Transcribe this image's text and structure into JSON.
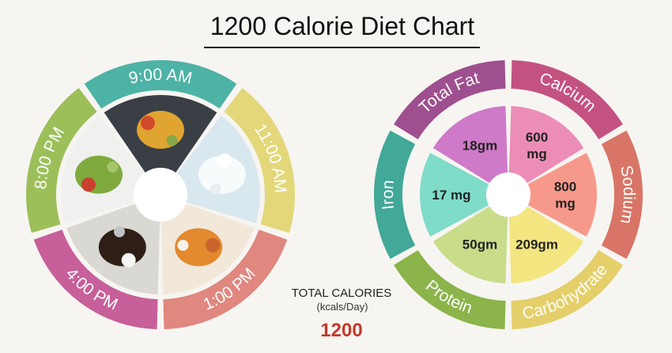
{
  "title": "1200 Calorie Diet Chart",
  "meal_ring": [
    {
      "label": "9:00 AM",
      "color": "#4db3a6",
      "food": "rice-bowl-photo"
    },
    {
      "label": "11:00 AM",
      "color": "#e3d77a",
      "food": "milk-glasses-photo"
    },
    {
      "label": "1:00 PM",
      "color": "#e0877f",
      "food": "fish-curry-photo"
    },
    {
      "label": "4:00 PM",
      "color": "#c75f9a",
      "food": "tea-cup-photo"
    },
    {
      "label": "8:00 PM",
      "color": "#9cbf5a",
      "food": "salad-bowl-photo"
    }
  ],
  "center_totals": {
    "heading": "TOTAL CALORIES",
    "unit": "(kcals/Day)",
    "value": "1200"
  },
  "nutrients": [
    {
      "name": "Total Fat",
      "amount": "18gm",
      "ring_color": "#9e4f8f",
      "wedge_color": "#cf7ac8"
    },
    {
      "name": "Calcium",
      "amount": "600\nmg",
      "ring_color": "#c45281",
      "wedge_color": "#ec8db7"
    },
    {
      "name": "Sodium",
      "amount": "800\nmg",
      "ring_color": "#d97566",
      "wedge_color": "#f7998a"
    },
    {
      "name": "Carbohydrate",
      "amount": "209gm",
      "ring_color": "#e5cf6a",
      "wedge_color": "#f3e680"
    },
    {
      "name": "Protein",
      "amount": "50gm",
      "ring_color": "#8bb44a",
      "wedge_color": "#c9dc8a"
    },
    {
      "name": "Iron",
      "amount": "17 mg",
      "ring_color": "#42a898",
      "wedge_color": "#7fdcc9"
    }
  ]
}
